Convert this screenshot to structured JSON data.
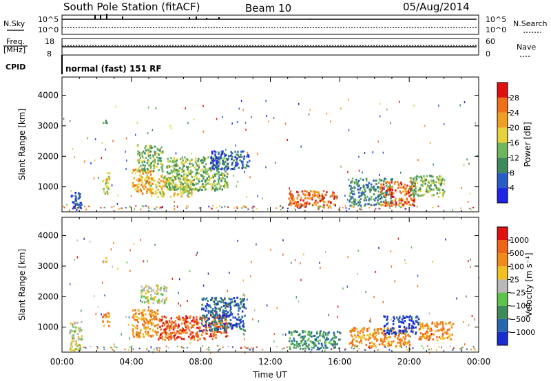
{
  "header": {
    "station": "South Pole Station (fitACF)",
    "beam": "Beam 10",
    "date": "05/Aug/2014"
  },
  "aux_panels": {
    "nsky_label": "N.Sky",
    "nsearch_label": "N.Search",
    "noise_tick_top": "10^5",
    "noise_tick_bottom": "10^0",
    "freq_label": "Freq.",
    "freq_unit": "[MHz]",
    "freq_tick_top": "18",
    "freq_tick_bottom": "8",
    "nave_label": "Nave",
    "nave_tick_top": "60",
    "nave_tick_bottom": "0",
    "cpid_label": "CPID",
    "cpid_value": "normal (fast) 151 RF"
  },
  "chart_data": [
    {
      "type": "heatmap",
      "id": "power",
      "xlabel": "",
      "ylabel": "Slant Range [km]",
      "x_range_hours": [
        0,
        24
      ],
      "y_range_km": [
        180,
        4600
      ],
      "yticks": [
        1000,
        2000,
        3000,
        4000
      ],
      "colorbar": {
        "label": "Power [dB]",
        "ticks": [
          "4",
          "8",
          "12",
          "16",
          "20",
          "24",
          "28"
        ],
        "colors": [
          "#1e24e6",
          "#2a5cc8",
          "#3f8a5a",
          "#6fb55c",
          "#e6d23a",
          "#f0a020",
          "#f07018",
          "#e01010"
        ]
      },
      "echo_regions": [
        {
          "t": [
            0.5,
            1.1
          ],
          "r": [
            250,
            900
          ],
          "level": 1
        },
        {
          "t": [
            2.3,
            2.7
          ],
          "r": [
            800,
            1500
          ],
          "level": 4
        },
        {
          "t": [
            2.3,
            2.6
          ],
          "r": [
            3100,
            3250
          ],
          "level": 3
        },
        {
          "t": [
            4.0,
            5.2
          ],
          "r": [
            800,
            1600
          ],
          "level": 5
        },
        {
          "t": [
            4.3,
            5.8
          ],
          "r": [
            1500,
            2400
          ],
          "level": 3
        },
        {
          "t": [
            5.0,
            7.5
          ],
          "r": [
            700,
            1400
          ],
          "level": 4
        },
        {
          "t": [
            6.0,
            9.5
          ],
          "r": [
            900,
            2000
          ],
          "level": 3
        },
        {
          "t": [
            8.5,
            10.8
          ],
          "r": [
            1600,
            2200
          ],
          "level": 1
        },
        {
          "t": [
            13.0,
            15.8
          ],
          "r": [
            350,
            900
          ],
          "level": 6
        },
        {
          "t": [
            16.5,
            19.0
          ],
          "r": [
            400,
            1300
          ],
          "level": 2
        },
        {
          "t": [
            18.3,
            20.3
          ],
          "r": [
            400,
            1200
          ],
          "level": 6
        },
        {
          "t": [
            20.0,
            22.0
          ],
          "r": [
            700,
            1400
          ],
          "level": 3
        }
      ]
    },
    {
      "type": "heatmap",
      "id": "velocity",
      "xlabel": "Time UT",
      "ylabel": "Slant Range [km]",
      "x_range_hours": [
        0,
        24
      ],
      "y_range_km": [
        180,
        4600
      ],
      "xticks": [
        "00:00",
        "04:00",
        "08:00",
        "12:00",
        "16:00",
        "20:00",
        "00:00"
      ],
      "yticks": [
        1000,
        2000,
        3000,
        4000
      ],
      "colorbar": {
        "label": "Velocity [m s⁻¹]",
        "ticks": [
          "1000",
          "500",
          "100",
          "25",
          "−25",
          "−100",
          "−500",
          "−1000"
        ],
        "colors": [
          "#1a2cd0",
          "#2a66b0",
          "#3f8a5a",
          "#5cc24a",
          "#b8b8b8",
          "#f0c020",
          "#f08a18",
          "#f06418",
          "#e01010"
        ]
      },
      "echo_regions": [
        {
          "t": [
            0.4,
            1.1
          ],
          "r": [
            250,
            1200
          ],
          "level": 4
        },
        {
          "t": [
            2.3,
            2.7
          ],
          "r": [
            1000,
            1500
          ],
          "level": 6
        },
        {
          "t": [
            2.3,
            2.6
          ],
          "r": [
            3150,
            3300
          ],
          "level": 5
        },
        {
          "t": [
            4.0,
            5.5
          ],
          "r": [
            700,
            1600
          ],
          "level": 6
        },
        {
          "t": [
            4.5,
            6.0
          ],
          "r": [
            1800,
            2400
          ],
          "level": 4
        },
        {
          "t": [
            5.5,
            9.5
          ],
          "r": [
            600,
            1400
          ],
          "level": 7
        },
        {
          "t": [
            8.0,
            10.5
          ],
          "r": [
            900,
            2000
          ],
          "level": 1
        },
        {
          "t": [
            13.0,
            16.0
          ],
          "r": [
            300,
            900
          ],
          "level": 2
        },
        {
          "t": [
            16.5,
            20.0
          ],
          "r": [
            400,
            1000
          ],
          "level": 6
        },
        {
          "t": [
            18.5,
            20.5
          ],
          "r": [
            800,
            1400
          ],
          "level": 0
        },
        {
          "t": [
            20.5,
            22.5
          ],
          "r": [
            600,
            1200
          ],
          "level": 6
        }
      ]
    }
  ]
}
